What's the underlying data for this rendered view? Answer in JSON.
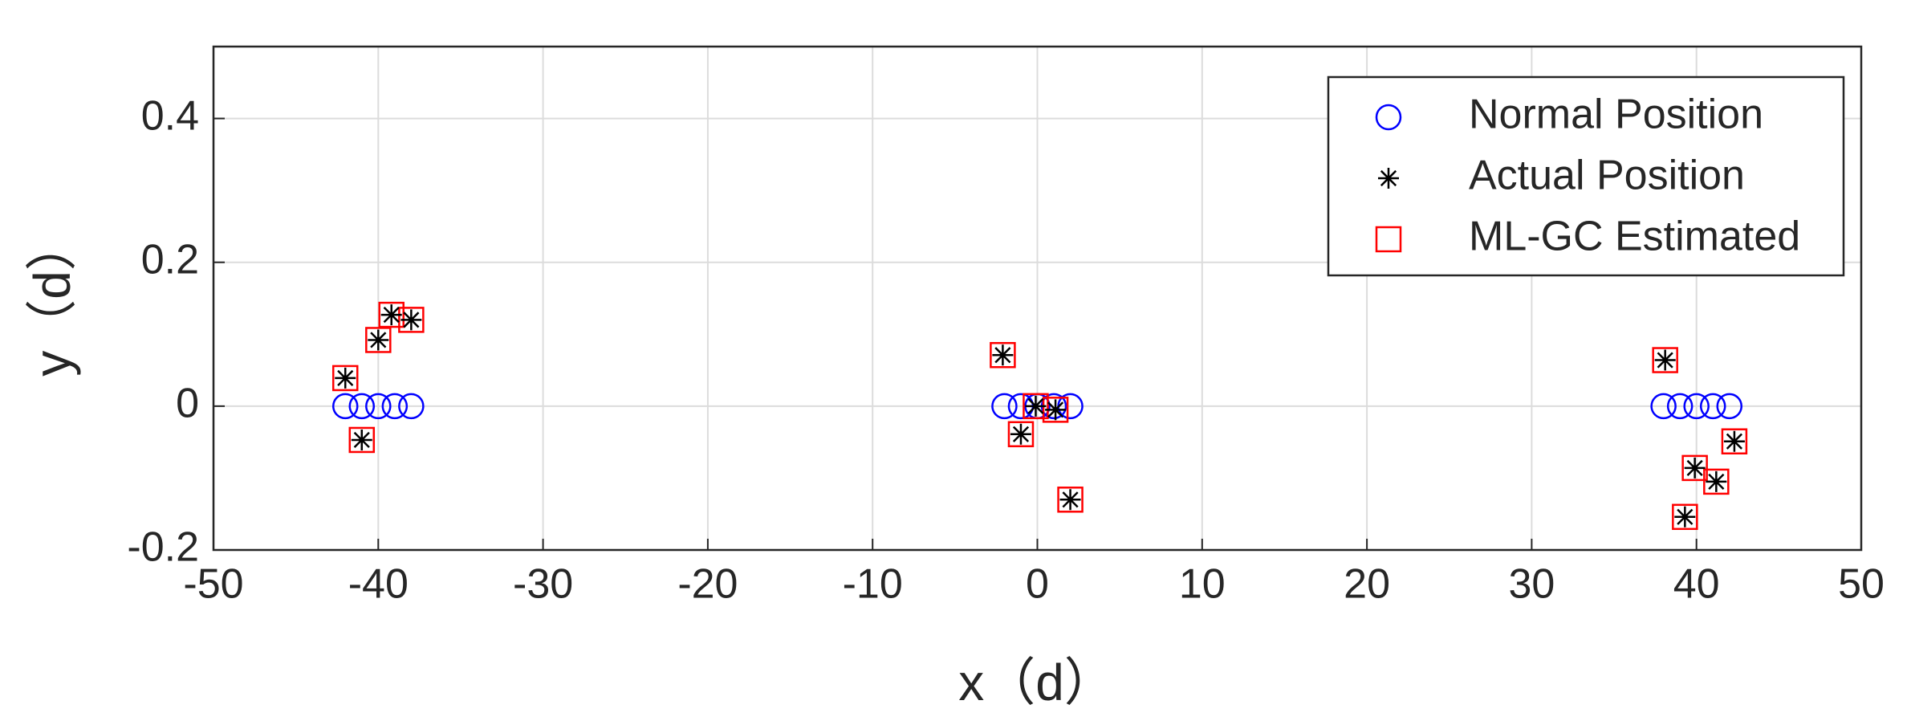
{
  "chart_data": {
    "type": "scatter",
    "xlabel": "x（d）",
    "ylabel": "y（d）",
    "xlim": [
      -50,
      50
    ],
    "ylim": [
      -0.2,
      0.5
    ],
    "xticks": [
      -50,
      -40,
      -30,
      -20,
      -10,
      0,
      10,
      20,
      30,
      40,
      50
    ],
    "yticks": [
      -0.2,
      0,
      0.2,
      0.4
    ],
    "grid": true,
    "legend": "upper right",
    "series": [
      {
        "name": "Normal Position",
        "color": "#0000ff",
        "marker": "circle",
        "x": [
          -42,
          -41,
          -40,
          -39,
          -38,
          -2,
          -1,
          0,
          1,
          2,
          38,
          39,
          40,
          41,
          42
        ],
        "values": [
          0,
          0,
          0,
          0,
          0,
          0,
          0,
          0,
          0,
          0,
          0,
          0,
          0,
          0,
          0
        ]
      },
      {
        "name": "Actual Position",
        "color": "#000000",
        "marker": "star",
        "x": [
          -42,
          -40,
          -39.2,
          -38,
          -41,
          -2.1,
          -0.1,
          1.1,
          -1,
          2,
          38.1,
          42.3,
          39.9,
          41.2,
          39.3
        ],
        "values": [
          0.039,
          0.092,
          0.127,
          0.12,
          -0.047,
          0.071,
          0,
          -0.005,
          -0.039,
          -0.13,
          0.064,
          -0.049,
          -0.086,
          -0.105,
          -0.154
        ]
      },
      {
        "name": "ML-GC Estimated",
        "color": "#ff0000",
        "marker": "square",
        "x": [
          -42,
          -40,
          -39.2,
          -38,
          -41,
          -2.1,
          -0.1,
          1.1,
          -1,
          2,
          38.1,
          42.3,
          39.9,
          41.2,
          39.3
        ],
        "values": [
          0.039,
          0.092,
          0.127,
          0.12,
          -0.047,
          0.071,
          0,
          -0.005,
          -0.039,
          -0.13,
          0.064,
          -0.049,
          -0.086,
          -0.105,
          -0.154
        ]
      }
    ]
  }
}
